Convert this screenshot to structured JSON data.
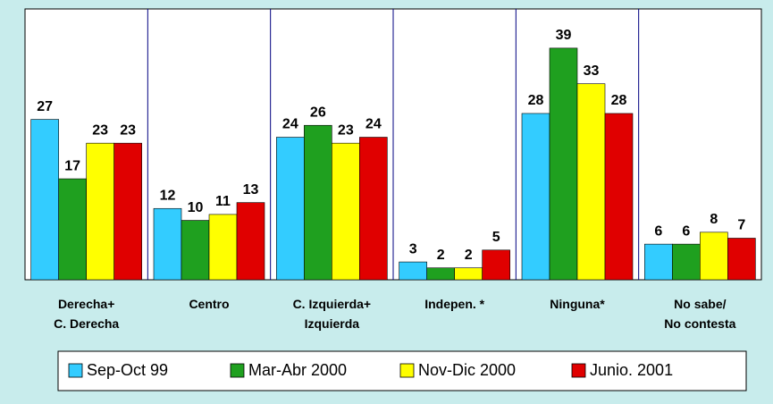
{
  "chart_data": {
    "type": "bar",
    "categories": [
      "Derecha+\nC. Derecha",
      "Centro",
      "C. Izquierda+\nIzquierda",
      "Indepen. *",
      "Ninguna*",
      "No sabe/\nNo contesta"
    ],
    "series": [
      {
        "name": "Sep-Oct 99",
        "color": "#33ccff",
        "values": [
          27,
          12,
          24,
          3,
          28,
          6
        ]
      },
      {
        "name": "Mar-Abr 2000",
        "color": "#1fa01f",
        "values": [
          17,
          10,
          26,
          2,
          39,
          6
        ]
      },
      {
        "name": "Nov-Dic 2000",
        "color": "#ffff00",
        "values": [
          23,
          11,
          23,
          2,
          33,
          8
        ]
      },
      {
        "name": "Junio. 2001",
        "color": "#e00000",
        "values": [
          23,
          13,
          24,
          5,
          28,
          7
        ]
      }
    ],
    "ylim": [
      0,
      45.6
    ]
  }
}
